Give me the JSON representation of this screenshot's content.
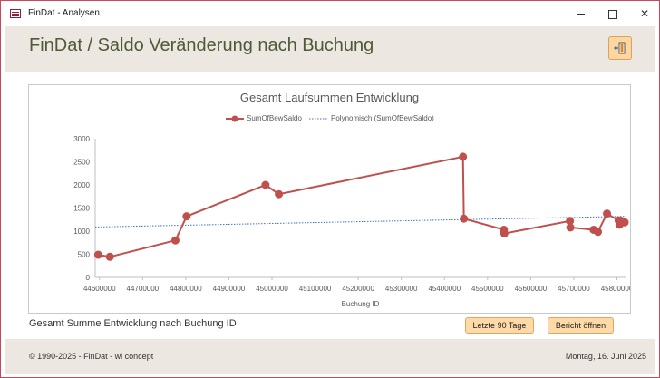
{
  "window": {
    "title": "FinDat - Analysen",
    "controls": {
      "minimize_icon": "minimize-icon",
      "maximize_icon": "maximize-icon",
      "close_symbol": "✕"
    }
  },
  "header": {
    "title": "FinDat / Saldo Veränderung nach Buchung",
    "exit_icon": "exit-door-icon"
  },
  "chart_data": {
    "type": "scatter",
    "title": "Gesamt Laufsummen Entwicklung",
    "xlabel": "Buchung ID",
    "ylabel": "",
    "xlim": [
      44590000,
      45820000
    ],
    "ylim": [
      0,
      3000
    ],
    "x_ticks": [
      44600000,
      44700000,
      44800000,
      44900000,
      45000000,
      45100000,
      45200000,
      45300000,
      45400000,
      45500000,
      45600000,
      45700000,
      45800000
    ],
    "y_ticks": [
      0,
      500,
      1000,
      1500,
      2000,
      2500,
      3000
    ],
    "grid": false,
    "legend_position": "top",
    "series": [
      {
        "name": "SumOfBewSaldo",
        "color": "#c0504d",
        "x": [
          44597000,
          44624000,
          44776000,
          44802000,
          44985000,
          45016000,
          45443000,
          45445000,
          45538000,
          45539000,
          45691000,
          45692000,
          45746000,
          45756000,
          45777000,
          45804000,
          45806000,
          45808000,
          45818000
        ],
        "y": [
          490,
          445,
          800,
          1320,
          2000,
          1800,
          2610,
          1270,
          1030,
          950,
          1220,
          1080,
          1030,
          985,
          1380,
          1230,
          1140,
          1230,
          1190
        ]
      }
    ],
    "trendline": {
      "name": "Polynomisch (SumOfBewSaldo)",
      "color": "#4472c4",
      "x": [
        44590000,
        45820000
      ],
      "y": [
        1090,
        1320
      ]
    }
  },
  "caption": "Gesamt Summe Entwicklung nach Buchung ID",
  "buttons": {
    "last90": "Letzte 90 Tage",
    "report": "Bericht öffnen"
  },
  "footer": {
    "copyright": "© 1990-2025 - FinDat - wi concept",
    "date": "Montag, 16. Juni 2025"
  }
}
